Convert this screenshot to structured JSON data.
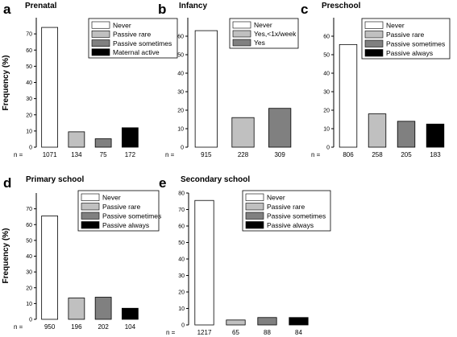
{
  "figure": {
    "ylabel": "Frequency (%)",
    "n_prefix": "n ="
  },
  "category_colors": {
    "Never": "#ffffff",
    "Passive rare": "#c0c0c0",
    "Passive sometimes": "#808080",
    "Maternal active": "#000000",
    "Passive always": "#000000",
    "Yes,<1x/week": "#c0c0c0",
    "Yes": "#808080"
  },
  "chart_data": [
    {
      "letter": "a",
      "type": "bar",
      "title": "Prenatal",
      "categories": [
        "Never",
        "Passive rare",
        "Passive sometimes",
        "Maternal active"
      ],
      "values": [
        74,
        9.5,
        5.2,
        12
      ],
      "n": [
        "1071",
        "134",
        "75",
        "172"
      ],
      "ylim": [
        0,
        80
      ],
      "yticks": [
        0,
        10,
        20,
        30,
        40,
        50,
        60,
        70
      ],
      "legend_position": "top-right",
      "show_ylabel": true
    },
    {
      "letter": "b",
      "type": "bar",
      "title": "Infancy",
      "categories": [
        "Never",
        "Yes,<1x/week",
        "Yes"
      ],
      "values": [
        63,
        16,
        21
      ],
      "n": [
        "915",
        "228",
        "309"
      ],
      "ylim": [
        0,
        70
      ],
      "yticks": [
        0,
        10,
        20,
        30,
        40,
        50,
        60
      ],
      "legend_position": "top-right",
      "show_ylabel": false
    },
    {
      "letter": "c",
      "type": "bar",
      "title": "Preschool",
      "categories": [
        "Never",
        "Passive rare",
        "Passive sometimes",
        "Passive always"
      ],
      "values": [
        55.5,
        18,
        14,
        12.5
      ],
      "n": [
        "806",
        "258",
        "205",
        "183"
      ],
      "ylim": [
        0,
        70
      ],
      "yticks": [
        0,
        10,
        20,
        30,
        40,
        50,
        60
      ],
      "legend_position": "top-right",
      "show_ylabel": false
    },
    {
      "letter": "d",
      "type": "bar",
      "title": "Primary school",
      "categories": [
        "Never",
        "Passive rare",
        "Passive sometimes",
        "Passive always"
      ],
      "values": [
        65.5,
        13.5,
        14,
        7
      ],
      "n": [
        "950",
        "196",
        "202",
        "104"
      ],
      "ylim": [
        0,
        80
      ],
      "yticks": [
        0,
        10,
        20,
        30,
        40,
        50,
        60,
        70
      ],
      "legend_position": "top-right",
      "show_ylabel": true
    },
    {
      "letter": "e",
      "type": "bar",
      "title": "Secondary school",
      "categories": [
        "Never",
        "Passive rare",
        "Passive sometimes",
        "Passive always"
      ],
      "values": [
        75.5,
        3,
        4.5,
        4.5
      ],
      "n": [
        "1217",
        "65",
        "88",
        "84"
      ],
      "ylim": [
        0,
        80
      ],
      "yticks": [
        0,
        10,
        20,
        30,
        40,
        50,
        60,
        70,
        80
      ],
      "legend_position": "top-right",
      "show_ylabel": false
    }
  ]
}
